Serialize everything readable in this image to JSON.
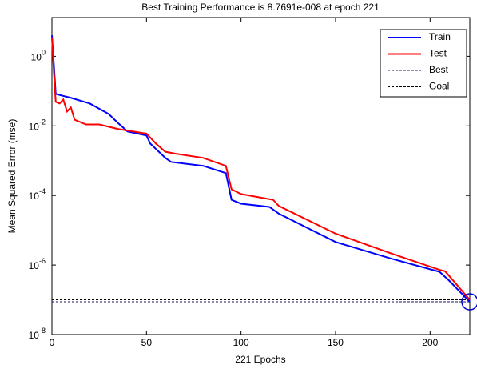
{
  "chart_data": {
    "type": "line",
    "title": "Best Training Performance is 8.7691e-008 at epoch 221",
    "xlabel": "221 Epochs",
    "ylabel": "Mean Squared Error  (mse)",
    "log_y": true,
    "xlim": [
      0,
      221
    ],
    "ylim": [
      1e-08,
      13
    ],
    "xticks": [
      0,
      50,
      100,
      150,
      200
    ],
    "yticks": [
      {
        "value": 1e-08,
        "label": "10",
        "exponent": "-8"
      },
      {
        "value": 1e-06,
        "label": "10",
        "exponent": "-6"
      },
      {
        "value": 0.0001,
        "label": "10",
        "exponent": "-4"
      },
      {
        "value": 0.01,
        "label": "10",
        "exponent": "-2"
      },
      {
        "value": 1,
        "label": "10",
        "exponent": "0"
      }
    ],
    "legend": "top-right",
    "series": [
      {
        "name": "Train",
        "color": "#0000ff",
        "x": [
          0,
          1,
          2,
          5,
          10,
          20,
          30,
          35,
          40,
          50,
          52,
          60,
          63,
          80,
          92,
          95,
          100,
          115,
          120,
          150,
          180,
          205,
          210,
          221
        ],
        "values": [
          4,
          0.6,
          0.083,
          0.075,
          0.064,
          0.044,
          0.022,
          0.012,
          0.0069,
          0.0053,
          0.0031,
          0.0012,
          0.00092,
          0.00071,
          0.00044,
          7.5e-05,
          5.8e-05,
          4.7e-05,
          3e-05,
          4.6e-06,
          1.5e-06,
          6.4e-07,
          3.6e-07,
          8.7691e-08
        ]
      },
      {
        "name": "Test",
        "color": "#ff0000",
        "x": [
          0,
          1,
          2,
          4,
          6,
          8,
          10,
          12,
          18,
          25,
          35,
          50,
          55,
          60,
          65,
          80,
          92,
          95,
          100,
          117,
          120,
          150,
          180,
          205,
          208,
          221
        ],
        "values": [
          3.5,
          0.37,
          0.049,
          0.044,
          0.057,
          0.026,
          0.034,
          0.015,
          0.011,
          0.011,
          0.0081,
          0.006,
          0.0031,
          0.0018,
          0.0016,
          0.0012,
          0.00071,
          0.00015,
          0.00011,
          7.5e-05,
          5e-05,
          8e-06,
          2.1e-06,
          7.3e-07,
          6.6e-07,
          1e-07
        ]
      }
    ],
    "best": {
      "name": "Best",
      "color": "#1a1a6e",
      "epoch": 221,
      "value": 8.7691e-08
    },
    "goal": {
      "name": "Goal",
      "color": "#000000",
      "value": 1e-07
    }
  }
}
